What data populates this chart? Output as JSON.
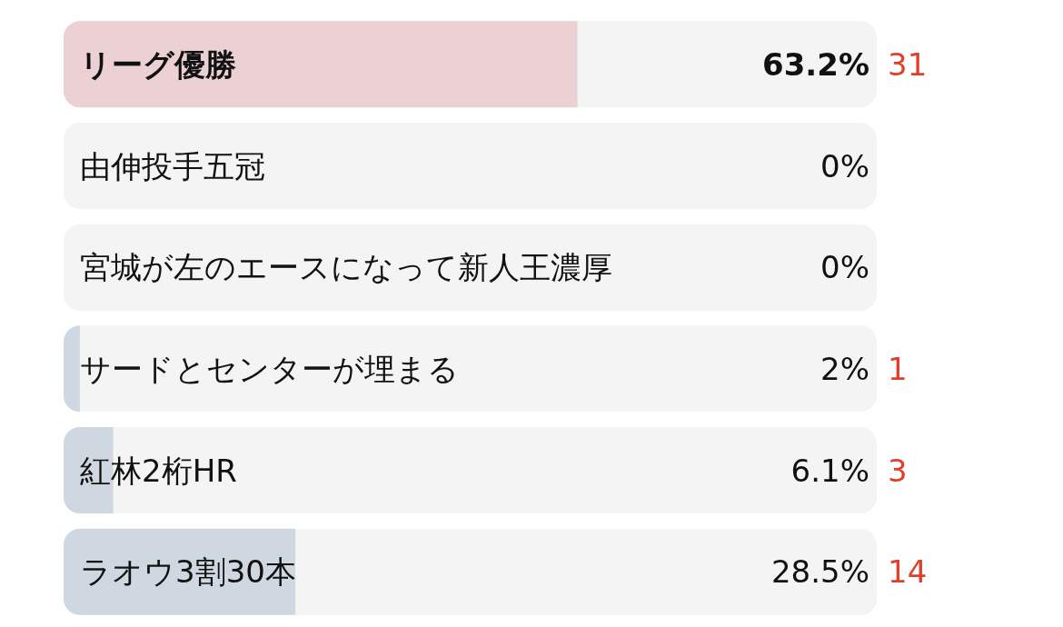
{
  "chart_data": {
    "type": "bar",
    "orientation": "horizontal",
    "categories": [
      "リーグ優勝",
      "由伸投手五冠",
      "宮城が左のエースになって新人王濃厚",
      "サードとセンターが埋まる",
      "紅林2桁HR",
      "ラオウ3割30本"
    ],
    "values": [
      63.2,
      0,
      0,
      2,
      6.1,
      28.5
    ],
    "colors": [
      "#ebd1d4",
      "#cfd8e0",
      "#cfd8e0",
      "#cfd8e0",
      "#cfd8e0",
      "#cfd8e0"
    ],
    "value_labels": [
      "63.2%",
      "0%",
      "0%",
      "2%",
      "6.1%",
      "28.5%"
    ],
    "xlim": [
      0,
      100
    ],
    "annotations": [
      "31",
      "1",
      "3",
      "14"
    ]
  }
}
